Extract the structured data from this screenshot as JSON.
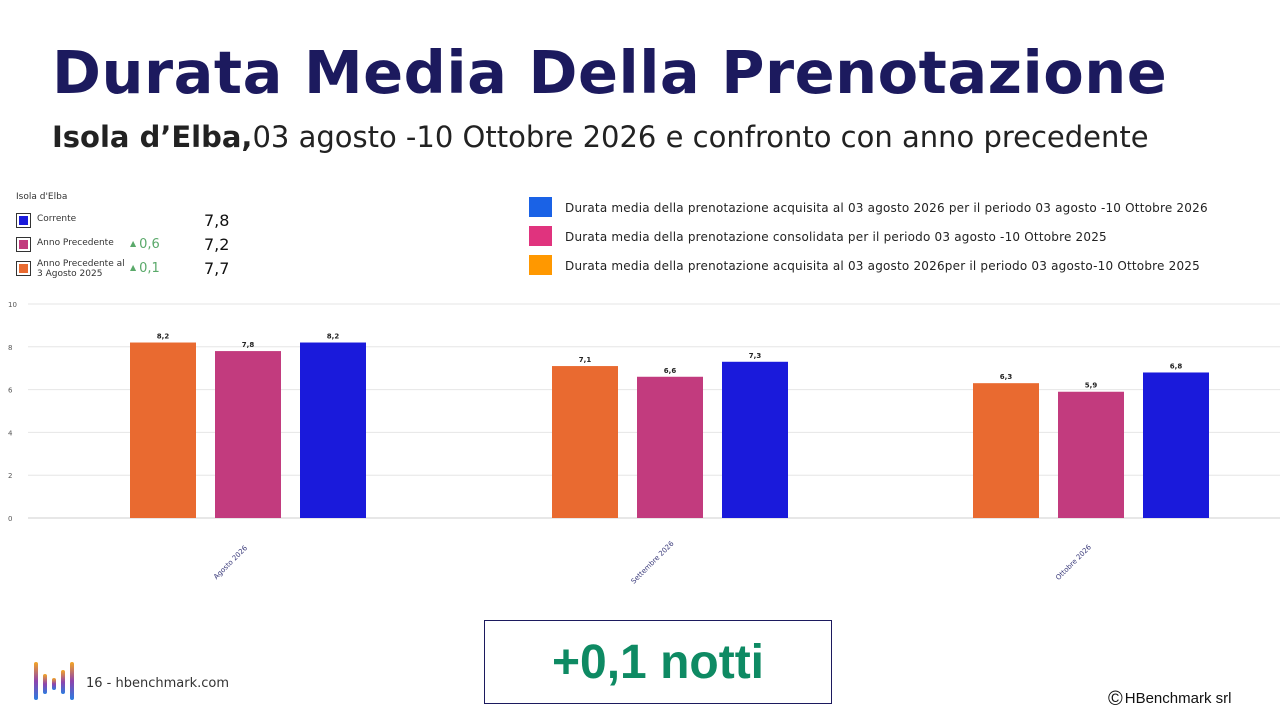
{
  "header": {
    "title": "Durata Media Della Prenotazione",
    "subtitle_bold": "Isola d’Elba,",
    "subtitle_rest": "03 agosto -10 Ottobre 2026 e confronto con anno precedente"
  },
  "kpi": {
    "title": "Isola d'Elba",
    "rows": [
      {
        "label": "Corrente",
        "delta": "",
        "value": "7,8",
        "color": "#1a1adb"
      },
      {
        "label": "Anno Precedente",
        "delta": "0,6",
        "value": "7,2",
        "color": "#c23b7e"
      },
      {
        "label": "Anno Precedente al 3 Agosto 2025",
        "delta": "0,1",
        "value": "7,7",
        "color": "#e96a30"
      }
    ]
  },
  "legend": {
    "items": [
      {
        "text": "Durata media della prenotazione acquisita al  03 agosto 2026 per il periodo 03 agosto -10 Ottobre 2026",
        "color": "#1a62e6"
      },
      {
        "text": "Durata media della prenotazione  consolidata per il periodo 03 agosto -10 Ottobre 2025",
        "color": "#e0337e"
      },
      {
        "text": "Durata media della prenotazione acquisita al 03 agosto 2026per il periodo 03 agosto-10 Ottobre 2025",
        "color": "#ff9800"
      }
    ]
  },
  "chart_data": {
    "type": "bar",
    "categories": [
      "Agosto 2026",
      "Settembre 2026",
      "Ottobre 2026"
    ],
    "series": [
      {
        "values": [
          8.2,
          7.1,
          6.3
        ],
        "labels": [
          "8,2",
          "7,1",
          "6,3"
        ],
        "color": "#e96a30"
      },
      {
        "values": [
          7.8,
          6.6,
          5.9
        ],
        "labels": [
          "7,8",
          "6,6",
          "5,9"
        ],
        "color": "#c23b7e"
      },
      {
        "values": [
          8.2,
          7.3,
          6.8
        ],
        "labels": [
          "8,2",
          "7,3",
          "6,8"
        ],
        "color": "#1a1adb"
      }
    ],
    "yticks": [
      0,
      2,
      4,
      6,
      8,
      10
    ],
    "ylim": [
      0,
      10
    ],
    "grid": true
  },
  "callout": "+0,1 notti",
  "footer": {
    "page": "16 - hbenchmark.com",
    "copyright_symbol": "©",
    "copyright": "HBenchmark srl"
  }
}
